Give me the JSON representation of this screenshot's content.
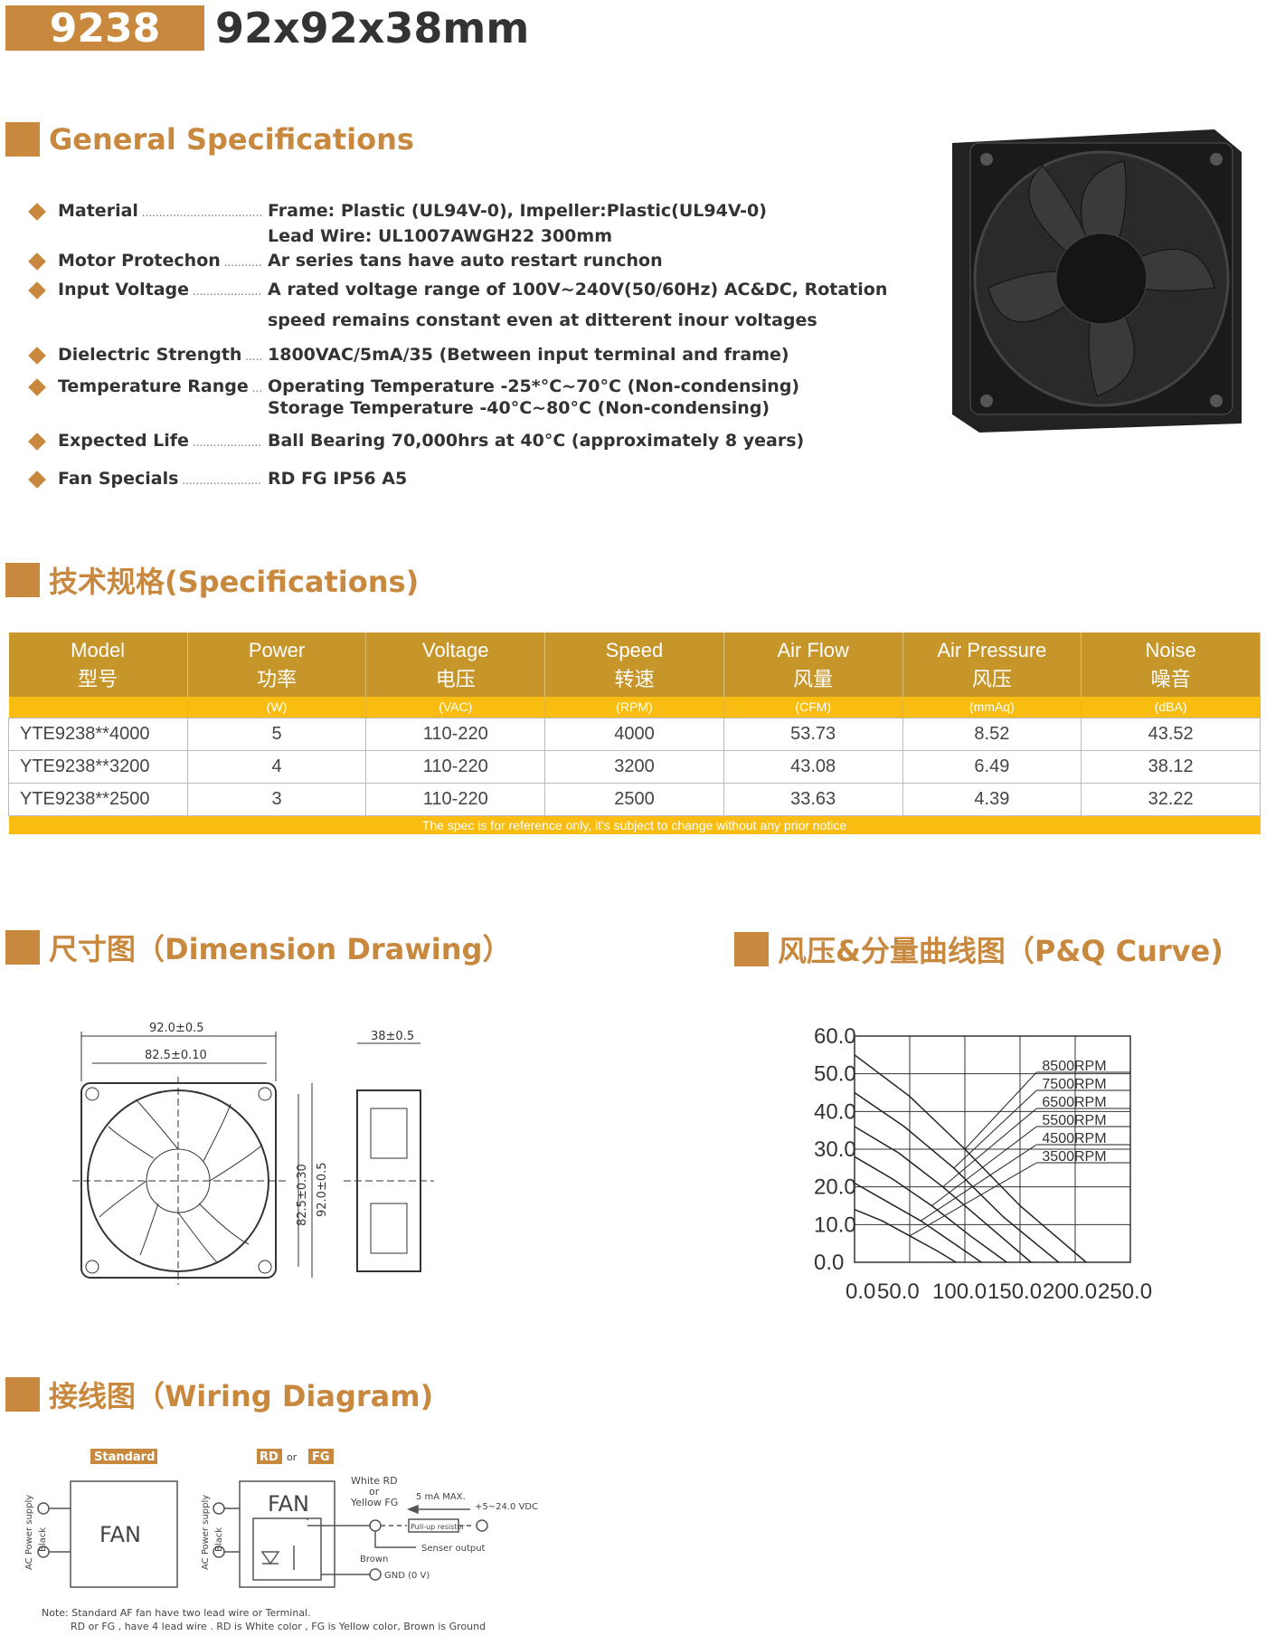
{
  "header": {
    "model": "9238",
    "dimensions": "92x92x38mm"
  },
  "general": {
    "title": "General Specifications",
    "items": [
      {
        "label": "Material",
        "lines": [
          "Frame: Plastic (UL94V-0), Impeller:Plastic(UL94V-0)",
          "Lead Wire: UL1007AWGH22 300mm"
        ]
      },
      {
        "label": "Motor Protechon",
        "lines": [
          "Ar series tans have auto restart runchon"
        ]
      },
      {
        "label": "Input Voltage",
        "lines": [
          "A rated voltage range of 100V~240V(50/60Hz) AC&DC, Rotation",
          "speed remains constant even at ditterent inour voltages"
        ]
      },
      {
        "label": "Dielectric Strength",
        "lines": [
          "1800VAC/5mA/35 (Between input terminal and frame)"
        ]
      },
      {
        "label": "Temperature Range",
        "lines": [
          "Operating Temperature -25*°C~70°C (Non-condensing)",
          "Storage Temperature -40°C~80°C (Non-condensing)"
        ]
      },
      {
        "label": "Expected Life",
        "lines": [
          "Ball Bearing 70,000hrs at 40°C (approximately 8 years)"
        ]
      },
      {
        "label": "Fan Specials",
        "lines": [
          "RD FG IP56 A5"
        ]
      }
    ]
  },
  "specs": {
    "title": "技术规格(Specifications)",
    "columns": [
      {
        "en": "Model",
        "cn": "型号",
        "unit": ""
      },
      {
        "en": "Power",
        "cn": "功率",
        "unit": "(W)"
      },
      {
        "en": "Voltage",
        "cn": "电压",
        "unit": "(VAC)"
      },
      {
        "en": "Speed",
        "cn": "转速",
        "unit": "(RPM)"
      },
      {
        "en": "Air Flow",
        "cn": "风量",
        "unit": "(CFM)"
      },
      {
        "en": "Air Pressure",
        "cn": "风压",
        "unit": "(mmAq)"
      },
      {
        "en": "Noise",
        "cn": "噪音",
        "unit": "(dBA)"
      }
    ],
    "rows": [
      [
        "YTE9238**4000",
        "5",
        "110-220",
        "4000",
        "53.73",
        "8.52",
        "43.52"
      ],
      [
        "YTE9238**3200",
        "4",
        "110-220",
        "3200",
        "43.08",
        "6.49",
        "38.12"
      ],
      [
        "YTE9238**2500",
        "3",
        "110-220",
        "2500",
        "33.63",
        "4.39",
        "32.22"
      ]
    ],
    "footnote": "The spec is for reference only, it's subject to change without any prior notice"
  },
  "dimension": {
    "title": "尺寸图（Dimension Drawing）",
    "labels": {
      "width": "92.0±0.5",
      "hole": "82.5±0.10",
      "hole_v": "82.5±0.30",
      "height_v": "92.0±0.5",
      "depth": "38±0.5"
    }
  },
  "pq": {
    "title": "风压&分量曲线图（P&Q Curve)"
  },
  "chart_data": {
    "type": "line",
    "xlim": [
      0,
      250
    ],
    "ylim": [
      0,
      60
    ],
    "grid": true,
    "legend": "top-right",
    "x_ticks": [
      "0.0",
      "50.0",
      "100.0",
      "150.0",
      "200.0",
      "250.0"
    ],
    "y_ticks": [
      "0.0",
      "10.0",
      "20.0",
      "30.0",
      "40.0",
      "50.0",
      "60.0"
    ],
    "series": [
      {
        "name": "8500RPM",
        "x": [
          0,
          50,
          100,
          150,
          210
        ],
        "y": [
          55,
          44,
          30,
          15,
          0
        ]
      },
      {
        "name": "7500RPM",
        "x": [
          0,
          45,
          90,
          135,
          185
        ],
        "y": [
          45,
          36,
          25,
          12,
          0
        ]
      },
      {
        "name": "6500RPM",
        "x": [
          0,
          40,
          80,
          120,
          160
        ],
        "y": [
          36,
          29,
          20,
          10,
          0
        ]
      },
      {
        "name": "5500RPM",
        "x": [
          0,
          35,
          70,
          105,
          138
        ],
        "y": [
          28,
          22,
          15,
          7,
          0
        ]
      },
      {
        "name": "4500RPM",
        "x": [
          0,
          30,
          60,
          90,
          115
        ],
        "y": [
          21,
          16,
          11,
          5,
          0
        ]
      },
      {
        "name": "3500RPM",
        "x": [
          0,
          25,
          50,
          75,
          92
        ],
        "y": [
          14,
          11,
          7,
          3,
          0
        ]
      }
    ]
  },
  "wiring": {
    "title": "接线图（Wiring Diagram)",
    "standard": "Standard",
    "rd": "RD",
    "or": "or",
    "fg": "FG",
    "fan": "FAN",
    "supply": "AC Power supply",
    "black": "Black",
    "white_rd": "White  RD",
    "or2": "or",
    "yellow_fg": "Yellow FG",
    "max": "5 mA MAX.",
    "vdc": "+5~24.0 VDC",
    "pullup": "Pull-up resistor",
    "sensor": "Senser output",
    "brown": "Brown",
    "gnd": "GND (0 V)",
    "note1": "Note: Standard AF fan have two lead wire or Terminal.",
    "note2": "RD or FG , have 4 lead wire . RD is White color , FG is Yellow color, Brown is Ground"
  },
  "colors": {
    "accent": "#c8893f",
    "table_header": "#c6962b",
    "table_band": "#f9bd12"
  }
}
